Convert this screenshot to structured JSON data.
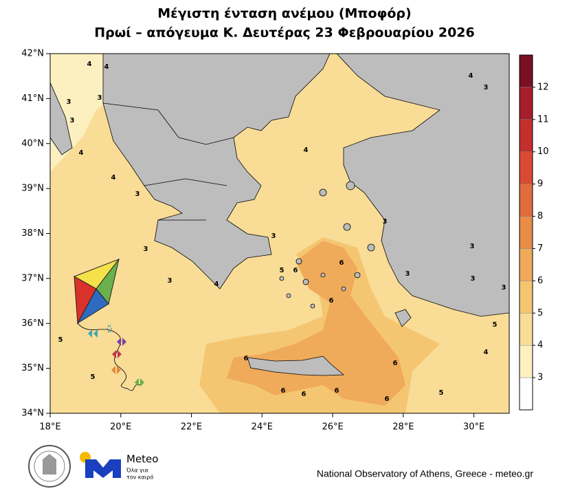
{
  "title": [
    "Μέγιστη ένταση ανέμου (Μποφόρ)",
    "Πρωί – απόγευμα Κ. Δευτέρας 23 Φεβρουαρίου 2026"
  ],
  "lat_ticks": [
    {
      "value": 34,
      "label": "34°N"
    },
    {
      "value": 35,
      "label": "35°N"
    },
    {
      "value": 36,
      "label": "36°N"
    },
    {
      "value": 37,
      "label": "37°N"
    },
    {
      "value": 38,
      "label": "38°N"
    },
    {
      "value": 39,
      "label": "39°N"
    },
    {
      "value": 40,
      "label": "40°N"
    },
    {
      "value": 41,
      "label": "41°N"
    },
    {
      "value": 42,
      "label": "42°N"
    }
  ],
  "lon_ticks": [
    {
      "value": 18,
      "label": "18°E"
    },
    {
      "value": 20,
      "label": "20°E"
    },
    {
      "value": 22,
      "label": "22°E"
    },
    {
      "value": 24,
      "label": "24°E"
    },
    {
      "value": 26,
      "label": "26°E"
    },
    {
      "value": 28,
      "label": "28°E"
    },
    {
      "value": 30,
      "label": "30°E"
    }
  ],
  "lat_range": [
    34,
    42
  ],
  "lon_range": [
    18,
    31
  ],
  "colorbar": {
    "levels": [
      3,
      4,
      5,
      6,
      7,
      8,
      9,
      10,
      11,
      12
    ],
    "colors": [
      "#ffffff",
      "#fdf0c0",
      "#f9dc96",
      "#f5c672",
      "#efaa5a",
      "#e88c48",
      "#e06c3c",
      "#d84a33",
      "#c42f2e",
      "#a61d2c",
      "#7a1024"
    ]
  },
  "contour_labels": [
    4,
    4,
    3,
    3,
    3,
    4,
    4,
    3,
    3,
    3,
    4,
    5,
    5,
    6,
    6,
    6,
    6,
    6,
    5,
    6,
    6,
    6,
    6,
    5,
    4,
    3,
    4,
    3,
    3,
    3,
    4,
    3,
    3,
    3,
    5
  ],
  "logo": {
    "name": "Meteo",
    "slogan": [
      "Όλα για",
      "τον καιρό"
    ]
  },
  "footer": "National Observatory of Athens, Greece - meteo.gr"
}
